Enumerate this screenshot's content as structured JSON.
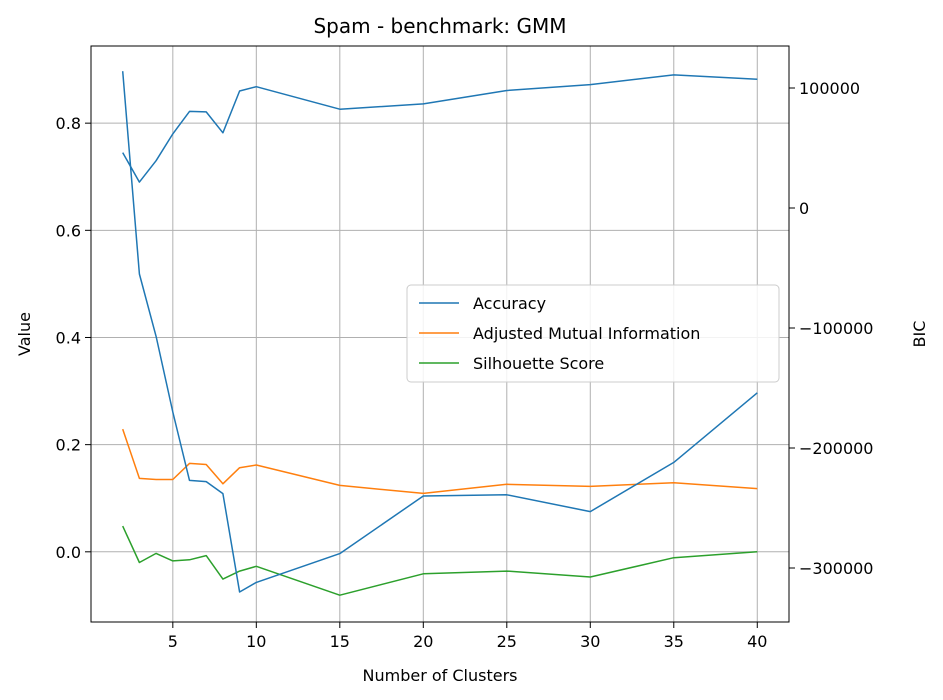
{
  "chart_data": {
    "type": "line",
    "title": "Spam - benchmark: GMM",
    "xlabel": "Number of Clusters",
    "ylabel": "Value",
    "y2label": "BIC",
    "xlim": [
      0.1,
      41.9
    ],
    "ylim": [
      -0.131,
      0.944
    ],
    "y2lim": [
      -345000,
      135000
    ],
    "xticks": [
      5,
      10,
      15,
      20,
      25,
      30,
      35,
      40
    ],
    "yticks": [
      0.0,
      0.2,
      0.4,
      0.6,
      0.8
    ],
    "ytick_labels": [
      "0.0",
      "0.2",
      "0.4",
      "0.6",
      "0.8"
    ],
    "y2ticks": [
      -300000,
      -200000,
      -100000,
      0,
      100000
    ],
    "y2tick_labels": [
      "−300000",
      "−200000",
      "−100000",
      "0",
      "100000"
    ],
    "grid": true,
    "legend_position": "center-right",
    "x": [
      2,
      3,
      4,
      5,
      6,
      7,
      8,
      9,
      10,
      15,
      20,
      25,
      30,
      35,
      40
    ],
    "series": [
      {
        "name": "Accuracy",
        "axis": "left",
        "color": "#1f77b4",
        "values": [
          0.745,
          0.69,
          0.73,
          0.78,
          0.822,
          0.821,
          0.782,
          0.86,
          0.868,
          0.826,
          0.836,
          0.861,
          0.872,
          0.89,
          0.882
        ]
      },
      {
        "name": "Adjusted Mutual Information",
        "axis": "left",
        "color": "#ff7f0e",
        "values": [
          0.229,
          0.137,
          0.135,
          0.135,
          0.165,
          0.163,
          0.127,
          0.157,
          0.162,
          0.124,
          0.109,
          0.126,
          0.122,
          0.129,
          0.118
        ]
      },
      {
        "name": "Silhouette Score",
        "axis": "left",
        "color": "#2ca02c",
        "values": [
          0.048,
          -0.02,
          -0.003,
          -0.017,
          -0.015,
          -0.007,
          -0.051,
          -0.036,
          -0.027,
          -0.081,
          -0.041,
          -0.036,
          -0.047,
          -0.011,
          0.0
        ]
      },
      {
        "axis": "right",
        "color": "#1f77b4",
        "values": [
          114000,
          -55000,
          -107000,
          -170000,
          -227000,
          -228000,
          -238000,
          -320000,
          -312000,
          -288000,
          -240000,
          -239000,
          -253000,
          -212000,
          -154000
        ]
      }
    ]
  }
}
